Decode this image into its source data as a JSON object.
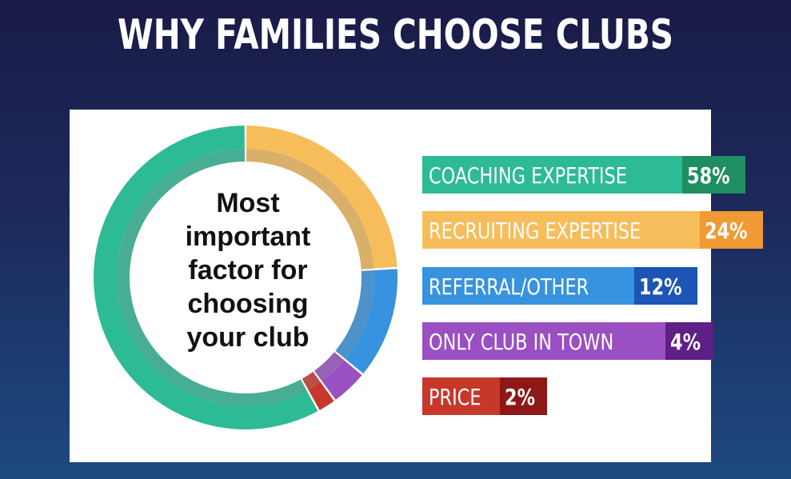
{
  "title": "WHY FAMILIES CHOOSE CLUBS",
  "chart_data": {
    "type": "pie",
    "title": "WHY FAMILIES CHOOSE CLUBS",
    "center_label": [
      "Most",
      "important",
      "factor for",
      "choosing",
      "your club"
    ],
    "categories": [
      "COACHING EXPERTISE",
      "RECRUITING EXPERTISE",
      "REFERRAL/OTHER",
      "ONLY CLUB IN TOWN",
      "PRICE"
    ],
    "values": [
      58,
      24,
      12,
      4,
      2
    ],
    "value_labels": [
      "58%",
      "24%",
      "12%",
      "4%",
      "2%"
    ],
    "colors": [
      "#2dbb95",
      "#f7bd5a",
      "#3793df",
      "#9a4fc2",
      "#c8382a"
    ],
    "dark_colors": [
      "#1f8e61",
      "#ef9a32",
      "#1c55b5",
      "#5e1f86",
      "#8e1717"
    ],
    "legend_position": "right"
  }
}
